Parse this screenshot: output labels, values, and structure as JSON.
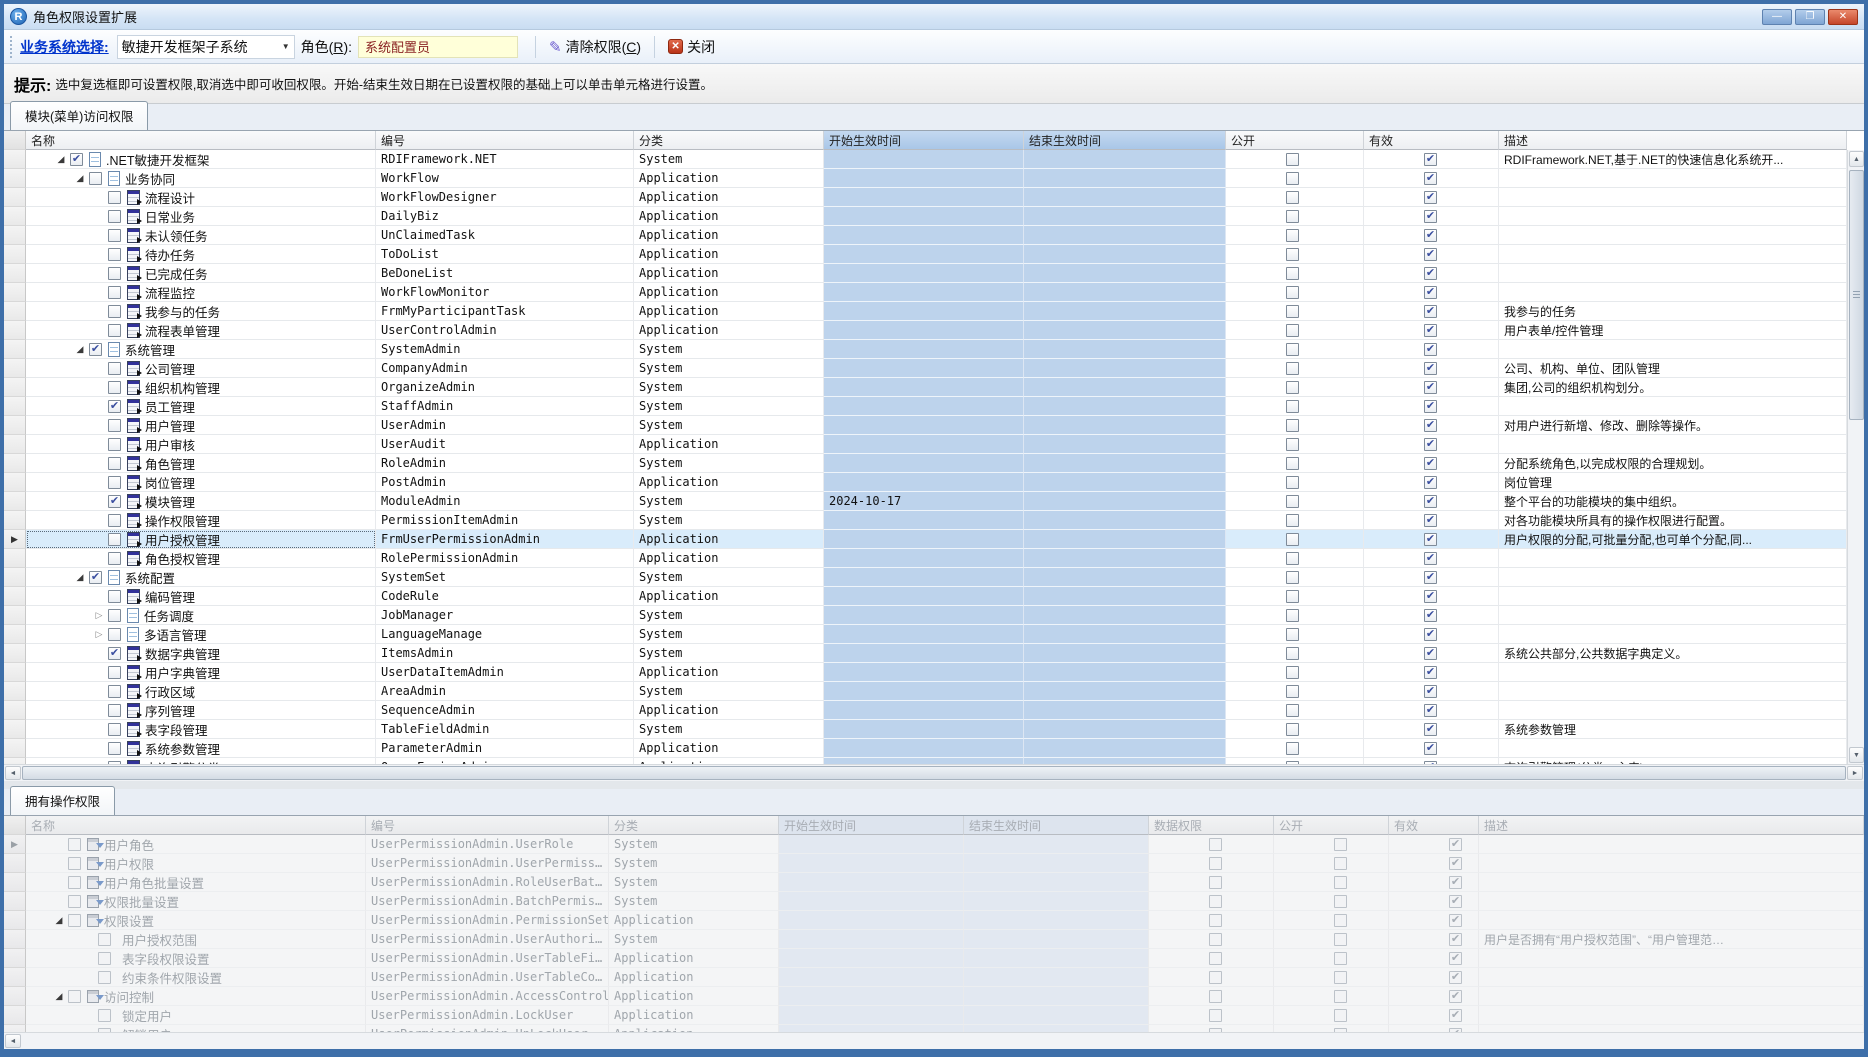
{
  "window": {
    "title": "角色权限设置扩展",
    "app_icon_letter": "R",
    "controls": {
      "minimize": "—",
      "maximize": "❐",
      "close": "✕"
    }
  },
  "toolbar": {
    "system_label": "业务系统选择:",
    "system_value": "敏捷开发框架子系统",
    "role_label": "角色(R):",
    "role_value": "系统配置员",
    "clear_button": "清除权限(C)",
    "close_button": "关闭"
  },
  "hint": {
    "prefix": "提示:",
    "text": "选中复选框即可设置权限,取消选中即可收回权限。开始-结束生效日期在已设置权限的基础上可以单击单元格进行设置。"
  },
  "tabs": {
    "module_tab": "模块(菜单)访问权限",
    "operation_tab": "拥有操作权限"
  },
  "colors": {
    "column_highlight": "#bdd3ec",
    "header_highlight": "#abc8e9",
    "selection": "#d9ecfb",
    "toolbar_label_blue": "#0033cc",
    "role_field_bg": "#ffffd9",
    "role_field_text": "#8b2323",
    "close_icon_red": "#c5462a"
  },
  "module_grid": {
    "columns": [
      "名称",
      "编号",
      "分类",
      "开始生效时间",
      "结束生效时间",
      "公开",
      "有效",
      "描述"
    ],
    "rows": [
      {
        "name": ".NET敏捷开发框架",
        "code": "RDIFramework.NET",
        "category": "System",
        "level": 0,
        "expand": "open",
        "icon": "page",
        "checked": true,
        "start": "",
        "end": "",
        "public": false,
        "valid": true,
        "desc": "RDIFramework.NET,基于.NET的快速信息化系统开..."
      },
      {
        "name": "业务协同",
        "code": "WorkFlow",
        "category": "Application",
        "level": 1,
        "expand": "open",
        "icon": "page",
        "checked": false,
        "start": "",
        "end": "",
        "public": false,
        "valid": true,
        "desc": ""
      },
      {
        "name": "流程设计",
        "code": "WorkFlowDesigner",
        "category": "Application",
        "level": 2,
        "expand": "",
        "icon": "form",
        "checked": false,
        "start": "",
        "end": "",
        "public": false,
        "valid": true,
        "desc": ""
      },
      {
        "name": "日常业务",
        "code": "DailyBiz",
        "category": "Application",
        "level": 2,
        "expand": "",
        "icon": "form",
        "checked": false,
        "start": "",
        "end": "",
        "public": false,
        "valid": true,
        "desc": ""
      },
      {
        "name": "未认领任务",
        "code": "UnClaimedTask",
        "category": "Application",
        "level": 2,
        "expand": "",
        "icon": "form",
        "checked": false,
        "start": "",
        "end": "",
        "public": false,
        "valid": true,
        "desc": ""
      },
      {
        "name": "待办任务",
        "code": "ToDoList",
        "category": "Application",
        "level": 2,
        "expand": "",
        "icon": "form",
        "checked": false,
        "start": "",
        "end": "",
        "public": false,
        "valid": true,
        "desc": ""
      },
      {
        "name": "已完成任务",
        "code": "BeDoneList",
        "category": "Application",
        "level": 2,
        "expand": "",
        "icon": "form",
        "checked": false,
        "start": "",
        "end": "",
        "public": false,
        "valid": true,
        "desc": ""
      },
      {
        "name": "流程监控",
        "code": "WorkFlowMonitor",
        "category": "Application",
        "level": 2,
        "expand": "",
        "icon": "form",
        "checked": false,
        "start": "",
        "end": "",
        "public": false,
        "valid": true,
        "desc": ""
      },
      {
        "name": "我参与的任务",
        "code": "FrmMyParticipantTask",
        "category": "Application",
        "level": 2,
        "expand": "",
        "icon": "form",
        "checked": false,
        "start": "",
        "end": "",
        "public": false,
        "valid": true,
        "desc": "我参与的任务"
      },
      {
        "name": "流程表单管理",
        "code": "UserControlAdmin",
        "category": "Application",
        "level": 2,
        "expand": "",
        "icon": "form",
        "checked": false,
        "start": "",
        "end": "",
        "public": false,
        "valid": true,
        "desc": "用户表单/控件管理"
      },
      {
        "name": "系统管理",
        "code": "SystemAdmin",
        "category": "System",
        "level": 1,
        "expand": "open",
        "icon": "page",
        "checked": true,
        "start": "",
        "end": "",
        "public": false,
        "valid": true,
        "desc": ""
      },
      {
        "name": "公司管理",
        "code": "CompanyAdmin",
        "category": "System",
        "level": 2,
        "expand": "",
        "icon": "form",
        "checked": false,
        "start": "",
        "end": "",
        "public": false,
        "valid": true,
        "desc": "公司、机构、单位、团队管理"
      },
      {
        "name": "组织机构管理",
        "code": "OrganizeAdmin",
        "category": "System",
        "level": 2,
        "expand": "",
        "icon": "form",
        "checked": false,
        "start": "",
        "end": "",
        "public": false,
        "valid": true,
        "desc": "集团,公司的组织机构划分。"
      },
      {
        "name": "员工管理",
        "code": "StaffAdmin",
        "category": "System",
        "level": 2,
        "expand": "",
        "icon": "form",
        "checked": true,
        "start": "",
        "end": "",
        "public": false,
        "valid": true,
        "desc": ""
      },
      {
        "name": "用户管理",
        "code": "UserAdmin",
        "category": "System",
        "level": 2,
        "expand": "",
        "icon": "form",
        "checked": false,
        "start": "",
        "end": "",
        "public": false,
        "valid": true,
        "desc": "对用户进行新增、修改、删除等操作。"
      },
      {
        "name": "用户审核",
        "code": "UserAudit",
        "category": "Application",
        "level": 2,
        "expand": "",
        "icon": "form",
        "checked": false,
        "start": "",
        "end": "",
        "public": false,
        "valid": true,
        "desc": ""
      },
      {
        "name": "角色管理",
        "code": "RoleAdmin",
        "category": "System",
        "level": 2,
        "expand": "",
        "icon": "form",
        "checked": false,
        "start": "",
        "end": "",
        "public": false,
        "valid": true,
        "desc": "分配系统角色,以完成权限的合理规划。"
      },
      {
        "name": "岗位管理",
        "code": "PostAdmin",
        "category": "Application",
        "level": 2,
        "expand": "",
        "icon": "form",
        "checked": false,
        "start": "",
        "end": "",
        "public": false,
        "valid": true,
        "desc": "岗位管理"
      },
      {
        "name": "模块管理",
        "code": "ModuleAdmin",
        "category": "System",
        "level": 2,
        "expand": "",
        "icon": "form",
        "checked": true,
        "start": "2024-10-17",
        "end": "",
        "public": false,
        "valid": true,
        "desc": "整个平台的功能模块的集中组织。"
      },
      {
        "name": "操作权限管理",
        "code": "PermissionItemAdmin",
        "category": "System",
        "level": 2,
        "expand": "",
        "icon": "form",
        "checked": false,
        "start": "",
        "end": "",
        "public": false,
        "valid": true,
        "desc": "对各功能模块所具有的操作权限进行配置。"
      },
      {
        "name": "用户授权管理",
        "code": "FrmUserPermissionAdmin",
        "category": "Application",
        "level": 2,
        "expand": "",
        "icon": "form",
        "checked": false,
        "selected": true,
        "start": "",
        "end": "",
        "public": false,
        "valid": true,
        "desc": "用户权限的分配,可批量分配,也可单个分配,同..."
      },
      {
        "name": "角色授权管理",
        "code": "RolePermissionAdmin",
        "category": "Application",
        "level": 2,
        "expand": "",
        "icon": "form",
        "checked": false,
        "start": "",
        "end": "",
        "public": false,
        "valid": true,
        "desc": ""
      },
      {
        "name": "系统配置",
        "code": "SystemSet",
        "category": "System",
        "level": 1,
        "expand": "open",
        "icon": "page",
        "checked": true,
        "start": "",
        "end": "",
        "public": false,
        "valid": true,
        "desc": ""
      },
      {
        "name": "编码管理",
        "code": "CodeRule",
        "category": "Application",
        "level": 2,
        "expand": "",
        "icon": "form",
        "checked": false,
        "start": "",
        "end": "",
        "public": false,
        "valid": true,
        "desc": ""
      },
      {
        "name": "任务调度",
        "code": "JobManager",
        "category": "System",
        "level": 2,
        "expand": "closed",
        "icon": "page",
        "checked": false,
        "start": "",
        "end": "",
        "public": false,
        "valid": true,
        "desc": ""
      },
      {
        "name": "多语言管理",
        "code": "LanguageManage",
        "category": "System",
        "level": 2,
        "expand": "closed",
        "icon": "page",
        "checked": false,
        "start": "",
        "end": "",
        "public": false,
        "valid": true,
        "desc": ""
      },
      {
        "name": "数据字典管理",
        "code": "ItemsAdmin",
        "category": "System",
        "level": 2,
        "expand": "",
        "icon": "form",
        "checked": true,
        "start": "",
        "end": "",
        "public": false,
        "valid": true,
        "desc": "系统公共部分,公共数据字典定义。"
      },
      {
        "name": "用户字典管理",
        "code": "UserDataItemAdmin",
        "category": "Application",
        "level": 2,
        "expand": "",
        "icon": "form",
        "checked": false,
        "start": "",
        "end": "",
        "public": false,
        "valid": true,
        "desc": ""
      },
      {
        "name": "行政区域",
        "code": "AreaAdmin",
        "category": "System",
        "level": 2,
        "expand": "",
        "icon": "form",
        "checked": false,
        "start": "",
        "end": "",
        "public": false,
        "valid": true,
        "desc": ""
      },
      {
        "name": "序列管理",
        "code": "SequenceAdmin",
        "category": "Application",
        "level": 2,
        "expand": "",
        "icon": "form",
        "checked": false,
        "start": "",
        "end": "",
        "public": false,
        "valid": true,
        "desc": ""
      },
      {
        "name": "表字段管理",
        "code": "TableFieldAdmin",
        "category": "System",
        "level": 2,
        "expand": "",
        "icon": "form",
        "checked": false,
        "start": "",
        "end": "",
        "public": false,
        "valid": true,
        "desc": "系统参数管理"
      },
      {
        "name": "系统参数管理",
        "code": "ParameterAdmin",
        "category": "Application",
        "level": 2,
        "expand": "",
        "icon": "form",
        "checked": false,
        "start": "",
        "end": "",
        "public": false,
        "valid": true,
        "desc": ""
      },
      {
        "name": "查询引擎分类",
        "code": "QueryEngineAdmin",
        "category": "Application",
        "level": 2,
        "expand": "",
        "icon": "form",
        "checked": false,
        "start": "",
        "end": "",
        "public": false,
        "valid": true,
        "desc": "查询引擎管理(分类、主表)"
      }
    ]
  },
  "operation_grid": {
    "columns": [
      "名称",
      "编号",
      "分类",
      "开始生效时间",
      "结束生效时间",
      "数据权限",
      "公开",
      "有效",
      "描述"
    ],
    "rows": [
      {
        "name": "用户角色",
        "code": "UserPermissionAdmin.UserRole",
        "category": "System",
        "level": 0,
        "expand": "",
        "icon": "grid",
        "indicator": true,
        "data_perm": false,
        "public": false,
        "valid": true,
        "desc": ""
      },
      {
        "name": "用户权限",
        "code": "UserPermissionAdmin.UserPermiss…",
        "category": "System",
        "level": 0,
        "expand": "",
        "icon": "grid",
        "data_perm": false,
        "public": false,
        "valid": true,
        "desc": ""
      },
      {
        "name": "用户角色批量设置",
        "code": "UserPermissionAdmin.RoleUserBat…",
        "category": "System",
        "level": 0,
        "expand": "",
        "icon": "grid",
        "data_perm": false,
        "public": false,
        "valid": true,
        "desc": ""
      },
      {
        "name": "权限批量设置",
        "code": "UserPermissionAdmin.BatchPermis…",
        "category": "System",
        "level": 0,
        "expand": "",
        "icon": "grid",
        "data_perm": false,
        "public": false,
        "valid": true,
        "desc": ""
      },
      {
        "name": "权限设置",
        "code": "UserPermissionAdmin.PermissionSet",
        "category": "Application",
        "level": 0,
        "expand": "open",
        "icon": "grid",
        "data_perm": false,
        "public": false,
        "valid": true,
        "desc": ""
      },
      {
        "name": "用户授权范围",
        "code": "UserPermissionAdmin.UserAuthori…",
        "category": "System",
        "level": 1,
        "expand": "",
        "icon": "button",
        "data_perm": false,
        "public": false,
        "valid": true,
        "desc": "用户是否拥有“用户授权范围”、“用户管理范…"
      },
      {
        "name": "表字段权限设置",
        "code": "UserPermissionAdmin.UserTableFi…",
        "category": "Application",
        "level": 1,
        "expand": "",
        "icon": "button",
        "data_perm": false,
        "public": false,
        "valid": true,
        "desc": ""
      },
      {
        "name": "约束条件权限设置",
        "code": "UserPermissionAdmin.UserTableCo…",
        "category": "Application",
        "level": 1,
        "expand": "",
        "icon": "button",
        "data_perm": false,
        "public": false,
        "valid": true,
        "desc": ""
      },
      {
        "name": "访问控制",
        "code": "UserPermissionAdmin.AccessControl",
        "category": "Application",
        "level": 0,
        "expand": "open",
        "icon": "grid",
        "data_perm": false,
        "public": false,
        "valid": true,
        "desc": ""
      },
      {
        "name": "锁定用户",
        "code": "UserPermissionAdmin.LockUser",
        "category": "Application",
        "level": 1,
        "expand": "",
        "icon": "button",
        "data_perm": false,
        "public": false,
        "valid": true,
        "desc": ""
      },
      {
        "name": "解锁用户",
        "code": "UserPermissionAdmin.UnLockUser",
        "category": "Application",
        "level": 1,
        "expand": "",
        "icon": "button",
        "data_perm": false,
        "public": false,
        "valid": true,
        "desc": ""
      }
    ]
  }
}
